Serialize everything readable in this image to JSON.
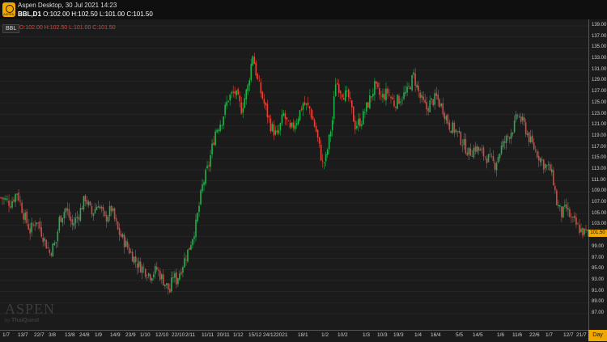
{
  "window": {
    "title": "Aspen Desktop, 30 Jul 2021 14:23",
    "symbol": "BBL,D1",
    "ohlc": "O:102.00 H:102.50 L:101.00 C:101.50",
    "icon_text": "ASPEN"
  },
  "chart_header": {
    "symbol_tag": "BBL",
    "ohlc": "O:102.00 H:102.50 L:101.00 C:101.50"
  },
  "colors": {
    "up": "#22b14c",
    "down": "#e0443a",
    "accent": "#f0a800",
    "grid": "#2e2e2e"
  },
  "price_axis": {
    "ticks": [
      "139.00",
      "137.00",
      "135.00",
      "133.00",
      "131.00",
      "129.00",
      "127.00",
      "125.00",
      "123.00",
      "121.00",
      "119.00",
      "117.00",
      "115.00",
      "113.00",
      "111.00",
      "109.00",
      "107.00",
      "105.00",
      "103.00",
      "101.00",
      "99.00",
      "97.00",
      "95.00",
      "93.00",
      "91.00",
      "89.00",
      "87.00"
    ],
    "last_price": "101.50"
  },
  "date_axis": {
    "ticks": [
      "1/7",
      "13/7",
      "22/7",
      "3/8",
      "13/8",
      "24/8",
      "1/9",
      "14/9",
      "23/9",
      "1/10",
      "12/10",
      "22/10",
      "2/11",
      "11/11",
      "20/11",
      "1/12",
      "15/12",
      "24/12",
      "2021",
      "18/1",
      "1/2",
      "10/2",
      "1/3",
      "10/3",
      "19/3",
      "1/4",
      "16/4",
      "5/5",
      "14/5",
      "1/6",
      "11/6",
      "22/6",
      "1/7",
      "12/7",
      "21/7"
    ],
    "period": "Day"
  },
  "watermark": {
    "main": "ASPEN",
    "by": "by",
    "brand": "ThaiQuest"
  },
  "chart_data": {
    "type": "candlestick",
    "y_range": [
      87,
      140
    ],
    "anchors": [
      [
        0,
        108
      ],
      [
        6,
        107
      ],
      [
        10,
        109
      ],
      [
        14,
        105
      ],
      [
        18,
        102
      ],
      [
        22,
        104
      ],
      [
        26,
        101
      ],
      [
        30,
        98
      ],
      [
        34,
        100
      ],
      [
        36,
        104
      ],
      [
        40,
        106
      ],
      [
        44,
        103
      ],
      [
        48,
        105
      ],
      [
        52,
        108
      ],
      [
        56,
        105
      ],
      [
        60,
        107
      ],
      [
        64,
        104
      ],
      [
        68,
        106
      ],
      [
        72,
        102
      ],
      [
        76,
        100
      ],
      [
        80,
        98
      ],
      [
        84,
        96
      ],
      [
        88,
        95
      ],
      [
        92,
        94
      ],
      [
        96,
        95
      ],
      [
        100,
        93
      ],
      [
        104,
        91
      ],
      [
        106,
        94
      ],
      [
        108,
        93
      ],
      [
        112,
        96
      ],
      [
        116,
        99
      ],
      [
        120,
        103
      ],
      [
        124,
        110
      ],
      [
        128,
        114
      ],
      [
        132,
        120
      ],
      [
        136,
        122
      ],
      [
        140,
        126
      ],
      [
        144,
        127
      ],
      [
        148,
        124
      ],
      [
        152,
        128
      ],
      [
        155,
        134
      ],
      [
        158,
        129
      ],
      [
        162,
        125
      ],
      [
        166,
        121
      ],
      [
        170,
        119
      ],
      [
        174,
        123
      ],
      [
        178,
        120
      ],
      [
        182,
        122
      ],
      [
        186,
        125
      ],
      [
        190,
        124
      ],
      [
        194,
        120
      ],
      [
        198,
        114
      ],
      [
        200,
        115
      ],
      [
        204,
        122
      ],
      [
        206,
        129
      ],
      [
        210,
        127
      ],
      [
        214,
        126
      ],
      [
        218,
        121
      ],
      [
        222,
        122
      ],
      [
        226,
        125
      ],
      [
        230,
        128
      ],
      [
        234,
        126
      ],
      [
        238,
        127
      ],
      [
        242,
        125
      ],
      [
        246,
        126
      ],
      [
        250,
        127
      ],
      [
        254,
        130
      ],
      [
        258,
        126
      ],
      [
        262,
        124
      ],
      [
        264,
        125
      ],
      [
        268,
        126
      ],
      [
        272,
        124
      ],
      [
        276,
        121
      ],
      [
        280,
        120
      ],
      [
        284,
        118
      ],
      [
        288,
        116
      ],
      [
        292,
        117
      ],
      [
        296,
        116
      ],
      [
        300,
        115
      ],
      [
        304,
        114
      ],
      [
        308,
        117
      ],
      [
        312,
        119
      ],
      [
        316,
        121
      ],
      [
        318,
        123
      ],
      [
        322,
        121
      ],
      [
        326,
        118
      ],
      [
        330,
        116
      ],
      [
        334,
        114
      ],
      [
        338,
        113
      ],
      [
        340,
        111
      ],
      [
        342,
        107
      ],
      [
        345,
        105
      ],
      [
        348,
        106
      ],
      [
        351,
        104
      ],
      [
        354,
        103
      ],
      [
        357,
        102
      ],
      [
        360,
        101.5
      ]
    ],
    "candle_count": 362
  }
}
